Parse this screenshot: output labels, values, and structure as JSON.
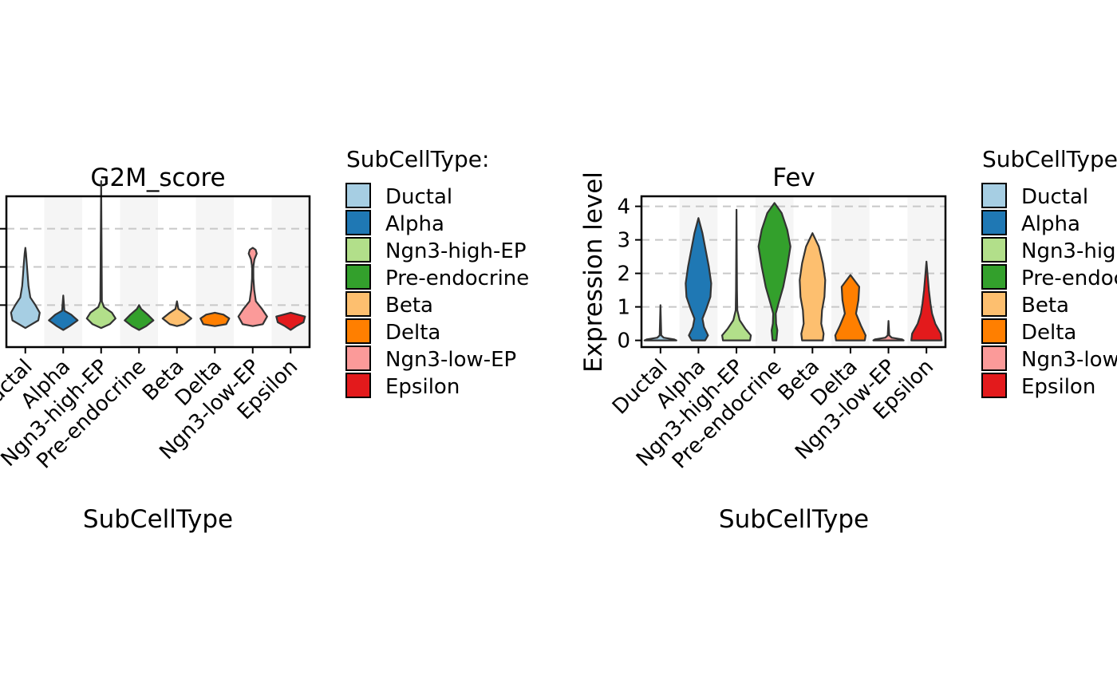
{
  "chart_data": [
    {
      "type": "violin",
      "title": "G2M_score",
      "xlabel": "SubCellType",
      "ylabel": "",
      "categories": [
        "Ductal",
        "Alpha",
        "Ngn3-high-EP",
        "Pre-endocrine",
        "Beta",
        "Delta",
        "Ngn3-low-EP",
        "Epsilon"
      ],
      "ylim": [
        -0.12,
        0.67
      ],
      "ygrid": [
        0.1,
        0.3,
        0.5,
        0.7
      ],
      "background_bands": "alternating grey stripes on even categories",
      "violins": [
        {
          "category": "Ductal",
          "min": -0.02,
          "max": 0.4,
          "profile": [
            [
              -0.02,
              0
            ],
            [
              0.02,
              0.9
            ],
            [
              0.06,
              1.0
            ],
            [
              0.1,
              0.7
            ],
            [
              0.14,
              0.35
            ],
            [
              0.2,
              0.22
            ],
            [
              0.26,
              0.16
            ],
            [
              0.32,
              0.1
            ],
            [
              0.37,
              0.05
            ],
            [
              0.4,
              0
            ]
          ]
        },
        {
          "category": "Alpha",
          "min": -0.03,
          "max": 0.15,
          "profile": [
            [
              -0.03,
              0
            ],
            [
              -0.01,
              0.45
            ],
            [
              0.02,
              1.0
            ],
            [
              0.05,
              0.55
            ],
            [
              0.07,
              0.08
            ],
            [
              0.15,
              0
            ]
          ]
        },
        {
          "category": "Ngn3-high-EP",
          "min": -0.02,
          "max": 0.75,
          "profile": [
            [
              -0.02,
              0
            ],
            [
              0.0,
              0.6
            ],
            [
              0.03,
              1.0
            ],
            [
              0.06,
              0.75
            ],
            [
              0.09,
              0.2
            ],
            [
              0.12,
              0.05
            ],
            [
              0.4,
              0.03
            ],
            [
              0.75,
              0
            ]
          ]
        },
        {
          "category": "Pre-endocrine",
          "min": -0.03,
          "max": 0.1,
          "profile": [
            [
              -0.03,
              0
            ],
            [
              -0.01,
              0.5
            ],
            [
              0.02,
              1.0
            ],
            [
              0.05,
              0.6
            ],
            [
              0.08,
              0.15
            ],
            [
              0.1,
              0
            ]
          ]
        },
        {
          "category": "Beta",
          "min": -0.01,
          "max": 0.12,
          "profile": [
            [
              -0.01,
              0
            ],
            [
              0.0,
              0.5
            ],
            [
              0.03,
              1.0
            ],
            [
              0.06,
              0.5
            ],
            [
              0.08,
              0.1
            ],
            [
              0.12,
              0
            ]
          ]
        },
        {
          "category": "Delta",
          "min": -0.01,
          "max": 0.06,
          "profile": [
            [
              -0.01,
              0
            ],
            [
              0.0,
              0.8
            ],
            [
              0.03,
              1.0
            ],
            [
              0.05,
              0.6
            ],
            [
              0.06,
              0
            ]
          ]
        },
        {
          "category": "Ngn3-low-EP",
          "min": -0.01,
          "max": 0.4,
          "profile": [
            [
              -0.01,
              0
            ],
            [
              0.0,
              0.7
            ],
            [
              0.04,
              1.0
            ],
            [
              0.08,
              0.65
            ],
            [
              0.12,
              0.22
            ],
            [
              0.18,
              0.1
            ],
            [
              0.24,
              0.05
            ],
            [
              0.3,
              0.04
            ],
            [
              0.34,
              0.12
            ],
            [
              0.37,
              0.28
            ],
            [
              0.39,
              0.2
            ],
            [
              0.4,
              0
            ]
          ]
        },
        {
          "category": "Epsilon",
          "min": -0.03,
          "max": 0.06,
          "profile": [
            [
              -0.03,
              0
            ],
            [
              -0.01,
              0.4
            ],
            [
              0.01,
              0.9
            ],
            [
              0.04,
              1.0
            ],
            [
              0.06,
              0
            ]
          ]
        }
      ]
    },
    {
      "type": "violin",
      "title": "Fev",
      "xlabel": "SubCellType",
      "ylabel": "Expression level",
      "categories": [
        "Ductal",
        "Alpha",
        "Ngn3-high-EP",
        "Pre-endocrine",
        "Beta",
        "Delta",
        "Ngn3-low-EP",
        "Epsilon"
      ],
      "ylim": [
        -0.2,
        4.3
      ],
      "yticks": [
        0,
        1,
        2,
        3,
        4
      ],
      "ygrid": [
        1,
        2,
        3,
        4
      ],
      "background_bands": "alternating grey stripes on even categories",
      "violins": [
        {
          "category": "Ductal",
          "min": 0,
          "max": 1.05,
          "profile": [
            [
              0,
              1.0
            ],
            [
              0.03,
              0.85
            ],
            [
              0.08,
              0.2
            ],
            [
              0.15,
              0.05
            ],
            [
              1.05,
              0
            ]
          ]
        },
        {
          "category": "Alpha",
          "min": 0,
          "max": 3.65,
          "profile": [
            [
              0,
              0.42
            ],
            [
              0.15,
              0.6
            ],
            [
              0.4,
              0.35
            ],
            [
              0.65,
              0.25
            ],
            [
              0.95,
              0.5
            ],
            [
              1.3,
              0.75
            ],
            [
              1.7,
              0.8
            ],
            [
              2.2,
              0.65
            ],
            [
              2.7,
              0.45
            ],
            [
              3.2,
              0.25
            ],
            [
              3.65,
              0
            ]
          ]
        },
        {
          "category": "Ngn3-high-EP",
          "min": 0,
          "max": 3.9,
          "profile": [
            [
              0,
              0.85
            ],
            [
              0.15,
              0.9
            ],
            [
              0.35,
              0.55
            ],
            [
              0.6,
              0.2
            ],
            [
              0.9,
              0.05
            ],
            [
              1.5,
              0.03
            ],
            [
              3.9,
              0
            ]
          ]
        },
        {
          "category": "Pre-endocrine",
          "min": 0,
          "max": 4.1,
          "profile": [
            [
              0,
              0.12
            ],
            [
              0.3,
              0.18
            ],
            [
              0.5,
              0.1
            ],
            [
              0.8,
              0.08
            ],
            [
              1.1,
              0.25
            ],
            [
              1.6,
              0.55
            ],
            [
              2.2,
              0.8
            ],
            [
              2.8,
              1.0
            ],
            [
              3.3,
              0.8
            ],
            [
              3.8,
              0.45
            ],
            [
              4.1,
              0
            ]
          ]
        },
        {
          "category": "Beta",
          "min": 0,
          "max": 3.2,
          "profile": [
            [
              0,
              0.65
            ],
            [
              0.2,
              0.7
            ],
            [
              0.5,
              0.55
            ],
            [
              0.9,
              0.6
            ],
            [
              1.3,
              0.75
            ],
            [
              1.8,
              0.8
            ],
            [
              2.3,
              0.65
            ],
            [
              2.8,
              0.4
            ],
            [
              3.2,
              0
            ]
          ]
        },
        {
          "category": "Delta",
          "min": 0,
          "max": 1.95,
          "profile": [
            [
              0,
              0.9
            ],
            [
              0.15,
              0.95
            ],
            [
              0.45,
              0.65
            ],
            [
              0.8,
              0.35
            ],
            [
              1.2,
              0.5
            ],
            [
              1.6,
              0.55
            ],
            [
              1.95,
              0
            ]
          ]
        },
        {
          "category": "Ngn3-low-EP",
          "min": 0,
          "max": 0.58,
          "profile": [
            [
              0,
              0.95
            ],
            [
              0.03,
              0.85
            ],
            [
              0.08,
              0.2
            ],
            [
              0.15,
              0.05
            ],
            [
              0.58,
              0
            ]
          ]
        },
        {
          "category": "Epsilon",
          "min": 0,
          "max": 2.35,
          "profile": [
            [
              0,
              0.95
            ],
            [
              0.2,
              0.9
            ],
            [
              0.5,
              0.55
            ],
            [
              0.8,
              0.35
            ],
            [
              1.1,
              0.25
            ],
            [
              1.5,
              0.15
            ],
            [
              1.9,
              0.08
            ],
            [
              2.35,
              0
            ]
          ]
        }
      ]
    }
  ],
  "legend": {
    "title": "SubCellType:",
    "entries": [
      {
        "label": "Ductal",
        "color": "#A6CEE3"
      },
      {
        "label": "Alpha",
        "color": "#1F78B4"
      },
      {
        "label": "Ngn3-high-EP",
        "color": "#B2DF8A"
      },
      {
        "label": "Pre-endocrine",
        "color": "#33A02C"
      },
      {
        "label": "Beta",
        "color": "#FDBF6F"
      },
      {
        "label": "Delta",
        "color": "#FF7F00"
      },
      {
        "label": "Ngn3-low-EP",
        "color": "#FB9A99"
      },
      {
        "label": "Epsilon",
        "color": "#E31A1C"
      }
    ]
  },
  "style": {
    "outline_color": "#333333",
    "band_color": "#F5F5F5",
    "grid_color": "#C8C8C8"
  }
}
